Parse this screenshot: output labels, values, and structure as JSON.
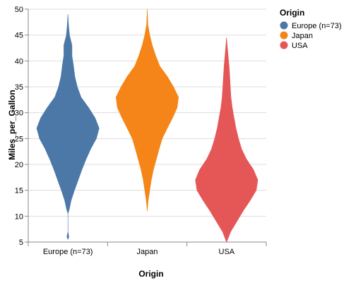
{
  "chart_data": {
    "type": "violin",
    "title": "",
    "xlabel": "Origin",
    "ylabel": "Miles_per_Gallon",
    "ylim": [
      5,
      50
    ],
    "yticks": [
      "5",
      "10",
      "15",
      "20",
      "25",
      "30",
      "35",
      "40",
      "45",
      "50"
    ],
    "categories": [
      "Europe (n=73)",
      "Japan",
      "USA"
    ],
    "grid": true,
    "legend": {
      "title": "Origin",
      "position": "top-right",
      "entries": [
        "Europe (n=73)",
        "Japan",
        "USA"
      ]
    },
    "series": [
      {
        "category": "Europe (n=73)",
        "color": "#4c78a8",
        "density": [
          [
            5.5,
            0.0
          ],
          [
            6.0,
            0.03
          ],
          [
            7.0,
            0.0
          ],
          [
            10.5,
            0.0
          ],
          [
            11.5,
            0.05
          ],
          [
            13.0,
            0.1
          ],
          [
            15.0,
            0.21
          ],
          [
            17.0,
            0.33
          ],
          [
            19.0,
            0.45
          ],
          [
            21.0,
            0.58
          ],
          [
            23.0,
            0.73
          ],
          [
            25.0,
            0.91
          ],
          [
            27.0,
            1.0
          ],
          [
            29.0,
            0.87
          ],
          [
            31.0,
            0.66
          ],
          [
            33.0,
            0.42
          ],
          [
            35.0,
            0.3
          ],
          [
            37.0,
            0.22
          ],
          [
            39.0,
            0.18
          ],
          [
            41.0,
            0.13
          ],
          [
            43.0,
            0.13
          ],
          [
            45.0,
            0.05
          ],
          [
            47.0,
            0.02
          ],
          [
            49.0,
            0.0
          ]
        ]
      },
      {
        "category": "Japan",
        "color": "#f58518",
        "density": [
          [
            11.0,
            0.0
          ],
          [
            13.0,
            0.03
          ],
          [
            15.0,
            0.08
          ],
          [
            17.0,
            0.13
          ],
          [
            19.0,
            0.2
          ],
          [
            21.0,
            0.29
          ],
          [
            23.0,
            0.38
          ],
          [
            25.0,
            0.48
          ],
          [
            27.0,
            0.64
          ],
          [
            29.0,
            0.81
          ],
          [
            31.0,
            0.96
          ],
          [
            33.0,
            1.0
          ],
          [
            35.0,
            0.84
          ],
          [
            37.0,
            0.64
          ],
          [
            39.0,
            0.4
          ],
          [
            41.0,
            0.27
          ],
          [
            43.0,
            0.16
          ],
          [
            45.0,
            0.08
          ],
          [
            47.0,
            0.02
          ],
          [
            50.0,
            0.0
          ]
        ]
      },
      {
        "category": "USA",
        "color": "#e45756",
        "density": [
          [
            5.0,
            0.0
          ],
          [
            7.0,
            0.13
          ],
          [
            9.0,
            0.33
          ],
          [
            11.0,
            0.53
          ],
          [
            13.0,
            0.75
          ],
          [
            15.0,
            0.95
          ],
          [
            17.0,
            1.0
          ],
          [
            19.0,
            0.86
          ],
          [
            21.0,
            0.64
          ],
          [
            23.0,
            0.48
          ],
          [
            25.0,
            0.38
          ],
          [
            27.0,
            0.3
          ],
          [
            29.0,
            0.24
          ],
          [
            31.0,
            0.18
          ],
          [
            33.0,
            0.14
          ],
          [
            35.0,
            0.12
          ],
          [
            37.0,
            0.1
          ],
          [
            39.0,
            0.08
          ],
          [
            41.0,
            0.05
          ],
          [
            43.0,
            0.02
          ],
          [
            44.5,
            0.0
          ]
        ]
      }
    ]
  }
}
